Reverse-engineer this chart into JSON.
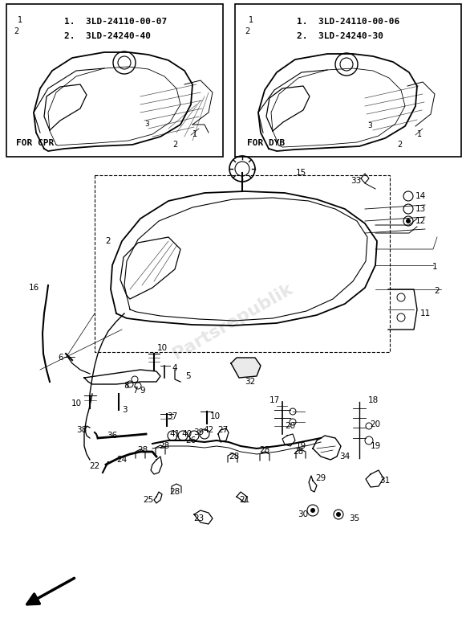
{
  "bg_color": "#ffffff",
  "top_left_box": {
    "label": "FOR CPR",
    "part1": "1.  3LD-24110-00-07",
    "part2": "2.  3LD-24240-40"
  },
  "top_right_box": {
    "label": "FOR DYB",
    "part1": "1.  3LD-24110-00-06",
    "part2": "2.  3LD-24240-30"
  },
  "watermark": "Partsrepublik"
}
